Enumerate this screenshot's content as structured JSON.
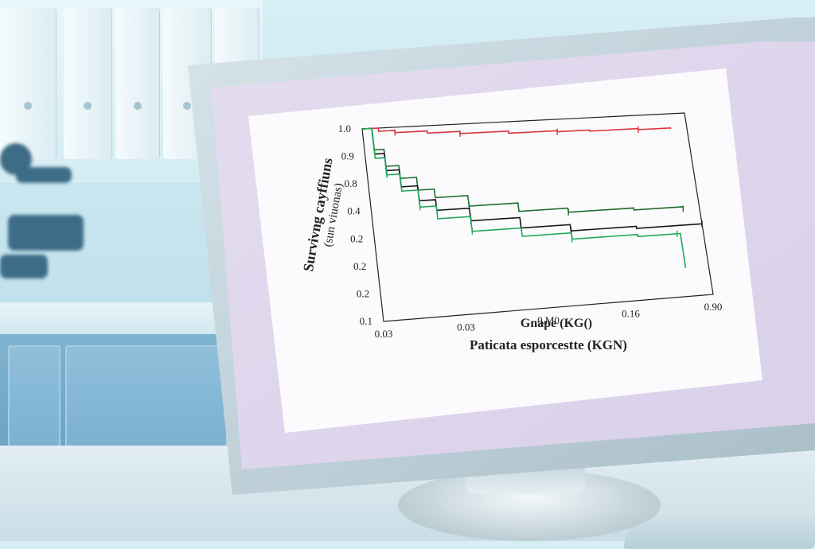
{
  "chart_data": {
    "type": "line",
    "title": "",
    "ylabel": "Survivng cayffiuns",
    "ylabel_sub": "(sun viuonas)",
    "xlabel": "Gnape (KG()",
    "xlabel_secondary": "Paticata esporcestte (KGN)",
    "y_ticks": [
      "1.0",
      "0.9",
      "0.8",
      "0.4",
      "0.2",
      "0.2",
      "0.2",
      "0.1"
    ],
    "x_ticks": [
      "0.03",
      "0.03",
      "0.M0",
      "0.16",
      "0.90"
    ],
    "series": [
      {
        "color": "#d9343a",
        "points": [
          [
            0,
            1.0
          ],
          [
            0.05,
            0.985
          ],
          [
            0.1,
            0.975
          ],
          [
            0.2,
            0.965
          ],
          [
            0.3,
            0.955
          ],
          [
            0.45,
            0.945
          ],
          [
            0.6,
            0.94
          ],
          [
            0.7,
            0.935
          ],
          [
            0.85,
            0.93
          ],
          [
            0.95,
            0.925
          ]
        ]
      },
      {
        "color": "#1f6e2b",
        "points": [
          [
            0,
            1.0
          ],
          [
            0.03,
            0.9
          ],
          [
            0.06,
            0.82
          ],
          [
            0.1,
            0.76
          ],
          [
            0.15,
            0.7
          ],
          [
            0.2,
            0.66
          ],
          [
            0.3,
            0.61
          ],
          [
            0.45,
            0.57
          ],
          [
            0.6,
            0.55
          ],
          [
            0.8,
            0.54
          ],
          [
            0.95,
            0.53
          ]
        ]
      },
      {
        "color": "#151515",
        "points": [
          [
            0,
            1.0
          ],
          [
            0.03,
            0.88
          ],
          [
            0.06,
            0.8
          ],
          [
            0.1,
            0.72
          ],
          [
            0.15,
            0.65
          ],
          [
            0.2,
            0.6
          ],
          [
            0.3,
            0.54
          ],
          [
            0.45,
            0.49
          ],
          [
            0.6,
            0.46
          ],
          [
            0.8,
            0.45
          ],
          [
            1.0,
            0.45
          ]
        ]
      },
      {
        "color": "#1fa85a",
        "points": [
          [
            0,
            1.0
          ],
          [
            0.03,
            0.86
          ],
          [
            0.06,
            0.78
          ],
          [
            0.1,
            0.7
          ],
          [
            0.15,
            0.62
          ],
          [
            0.2,
            0.56
          ],
          [
            0.3,
            0.49
          ],
          [
            0.45,
            0.45
          ],
          [
            0.6,
            0.42
          ],
          [
            0.8,
            0.41
          ],
          [
            0.92,
            0.41
          ],
          [
            0.93,
            0.24
          ]
        ]
      }
    ],
    "x_range": [
      0,
      1.0
    ],
    "y_range": [
      0.1,
      1.0
    ],
    "grid": false,
    "legend": "none"
  }
}
